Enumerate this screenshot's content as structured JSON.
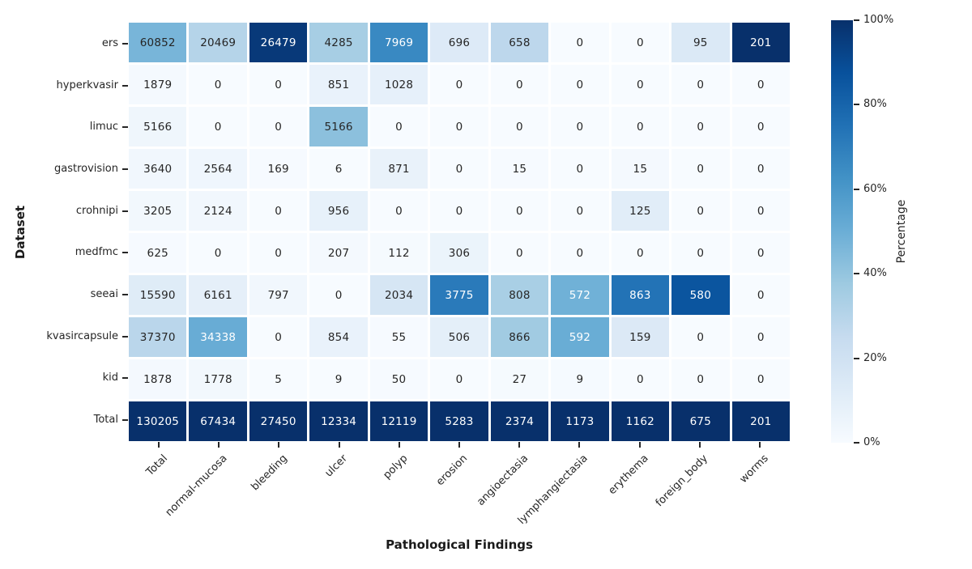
{
  "chart_data": {
    "type": "heatmap",
    "title": "",
    "xlabel": "Pathological Findings",
    "ylabel": "Dataset",
    "columns": [
      "Total",
      "normal-mucosa",
      "bleeding",
      "ulcer",
      "polyp",
      "erosion",
      "angioectasia",
      "lymphangiectasia",
      "erythema",
      "foreign_body",
      "worms"
    ],
    "rows": [
      "ers",
      "hyperkvasir",
      "limuc",
      "gastrovision",
      "crohnipi",
      "medfmc",
      "seeai",
      "kvasircapsule",
      "kid",
      "Total"
    ],
    "values": [
      [
        60852,
        20469,
        26479,
        4285,
        7969,
        696,
        658,
        0,
        0,
        95,
        201
      ],
      [
        1879,
        0,
        0,
        851,
        1028,
        0,
        0,
        0,
        0,
        0,
        0
      ],
      [
        5166,
        0,
        0,
        5166,
        0,
        0,
        0,
        0,
        0,
        0,
        0
      ],
      [
        3640,
        2564,
        169,
        6,
        871,
        0,
        15,
        0,
        15,
        0,
        0
      ],
      [
        3205,
        2124,
        0,
        956,
        0,
        0,
        0,
        0,
        125,
        0,
        0
      ],
      [
        625,
        0,
        0,
        207,
        112,
        306,
        0,
        0,
        0,
        0,
        0
      ],
      [
        15590,
        6161,
        797,
        0,
        2034,
        3775,
        808,
        572,
        863,
        580,
        0
      ],
      [
        37370,
        34338,
        0,
        854,
        55,
        506,
        866,
        592,
        159,
        0,
        0
      ],
      [
        1878,
        1778,
        5,
        9,
        50,
        0,
        27,
        9,
        0,
        0,
        0
      ],
      [
        130205,
        67434,
        27450,
        12334,
        12119,
        5283,
        2374,
        1173,
        1162,
        675,
        201
      ]
    ],
    "color_scale": "cell value divided by its column Total, 0% to 100%",
    "colormap": "Blues",
    "colormap_stops": [
      {
        "t": 0.0,
        "hex": "#f7fbff"
      },
      {
        "t": 0.125,
        "hex": "#deebf7"
      },
      {
        "t": 0.25,
        "hex": "#c6dbef"
      },
      {
        "t": 0.375,
        "hex": "#9ecae1"
      },
      {
        "t": 0.5,
        "hex": "#6baed6"
      },
      {
        "t": 0.625,
        "hex": "#4292c6"
      },
      {
        "t": 0.75,
        "hex": "#2171b5"
      },
      {
        "t": 0.875,
        "hex": "#08519c"
      },
      {
        "t": 1.0,
        "hex": "#08306b"
      }
    ],
    "colorbar": {
      "label": "Percentage",
      "ticks": [
        "0%",
        "20%",
        "40%",
        "60%",
        "80%",
        "100%"
      ],
      "min_percent": 0,
      "max_percent": 100
    },
    "legend_position": "right",
    "grid": "white cell separators"
  },
  "colors": {
    "background": "#ffffff",
    "annotation_dark": "#262626",
    "annotation_light": "#ffffff",
    "darkest_blue": "#08306b",
    "lightest_blue": "#f7fbff",
    "tick_color": "#262626"
  }
}
